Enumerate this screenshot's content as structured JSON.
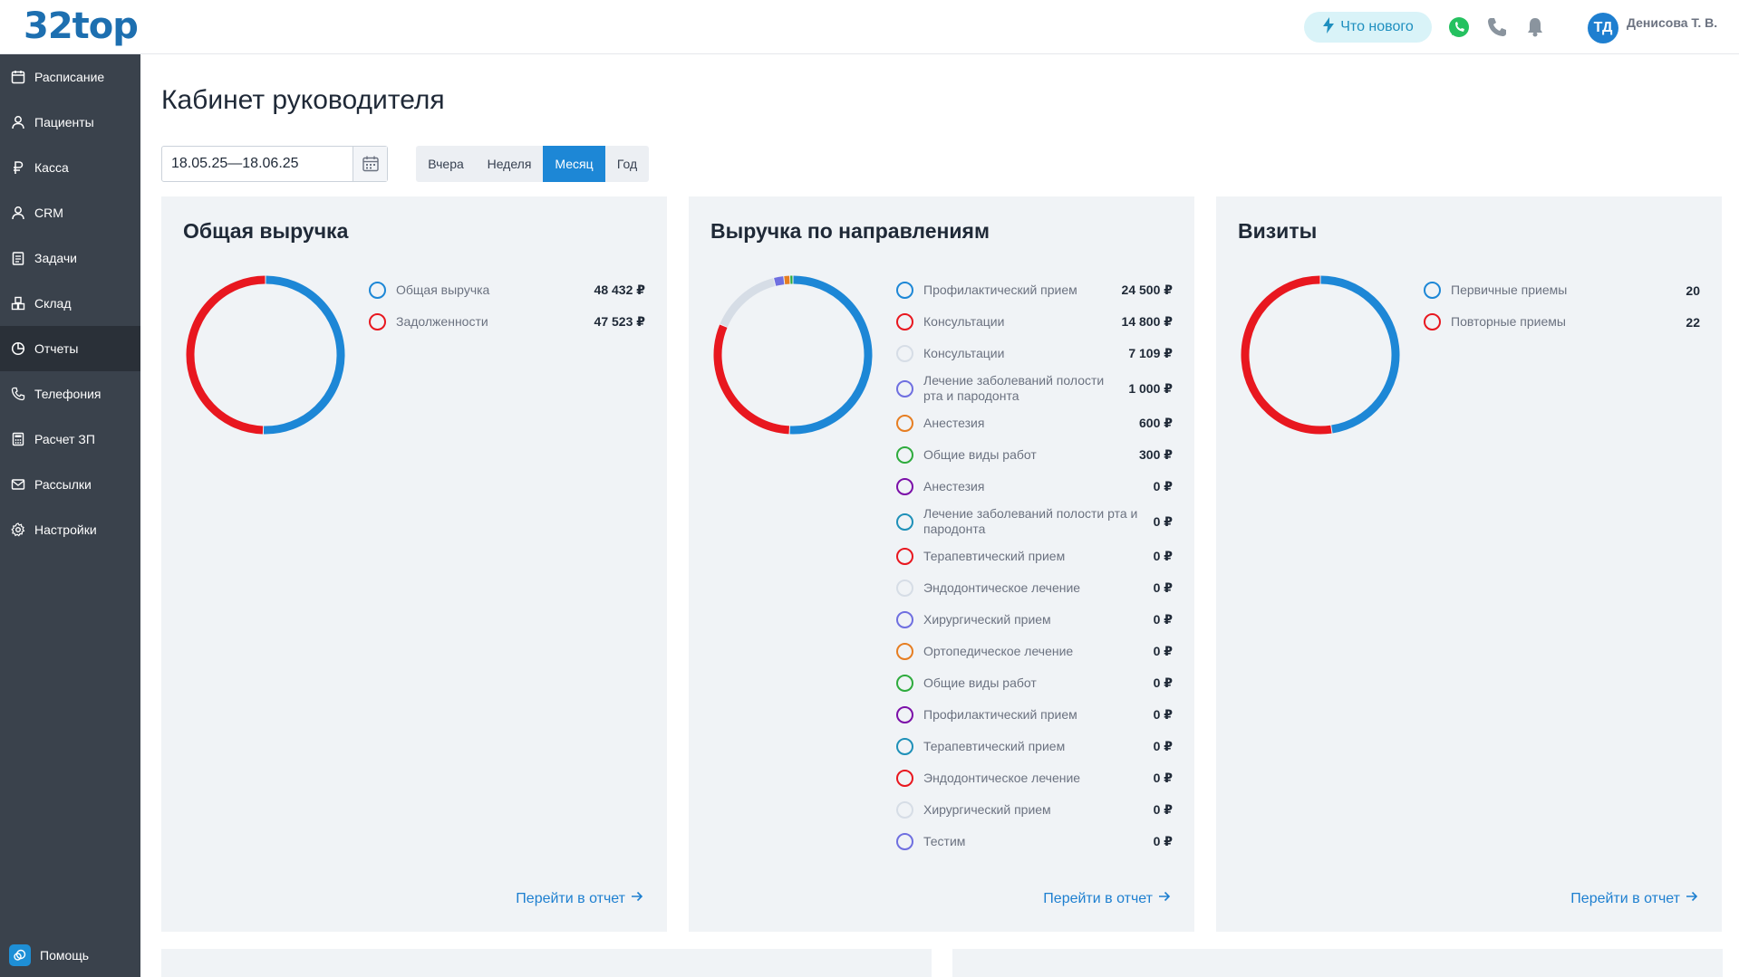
{
  "header": {
    "logo": "32top",
    "whats_new": "Что нового",
    "avatar_initials": "ТД",
    "user_name": "Денисова Т. В."
  },
  "sidebar": {
    "items": [
      {
        "label": "Расписание",
        "icon": "calendar-icon"
      },
      {
        "label": "Пациенты",
        "icon": "user-icon"
      },
      {
        "label": "Касса",
        "icon": "ruble-icon"
      },
      {
        "label": "CRM",
        "icon": "user-icon"
      },
      {
        "label": "Задачи",
        "icon": "clipboard-icon"
      },
      {
        "label": "Склад",
        "icon": "boxes-icon"
      },
      {
        "label": "Отчеты",
        "icon": "pie-chart-icon"
      },
      {
        "label": "Телефония",
        "icon": "phone-icon"
      },
      {
        "label": "Расчет ЗП",
        "icon": "calculator-icon"
      },
      {
        "label": "Рассылки",
        "icon": "mail-icon"
      },
      {
        "label": "Настройки",
        "icon": "gear-icon"
      }
    ],
    "active_index": 6,
    "help_label": "Помощь"
  },
  "main": {
    "title": "Кабинет руководителя",
    "date_range": "18.05.25—18.06.25",
    "periods": [
      "Вчера",
      "Неделя",
      "Месяц",
      "Год"
    ],
    "active_period": "Месяц",
    "report_link": "Перейти в отчет"
  },
  "chart_data": [
    {
      "type": "pie",
      "title": "Общая выручка",
      "series": [
        {
          "name": "Общая выручка",
          "value": 48432,
          "display": "48 432 ₽",
          "color": "#1d87d6"
        },
        {
          "name": "Задолженности",
          "value": 47523,
          "display": "47 523 ₽",
          "color": "#e8171f"
        }
      ]
    },
    {
      "type": "pie",
      "title": "Выручка по направлениям",
      "series": [
        {
          "name": "Профилактический прием",
          "value": 24500,
          "display": "24 500 ₽",
          "color": "#1d87d6"
        },
        {
          "name": "Консультации",
          "value": 14800,
          "display": "14 800 ₽",
          "color": "#e8171f"
        },
        {
          "name": "Консультации",
          "value": 7109,
          "display": "7 109 ₽",
          "color": "#d6dde6"
        },
        {
          "name": "Лечение заболеваний полости рта и пародонта",
          "value": 1000,
          "display": "1 000 ₽",
          "color": "#6f6fe0"
        },
        {
          "name": "Анестезия",
          "value": 600,
          "display": "600 ₽",
          "color": "#e67e22"
        },
        {
          "name": "Общие виды работ",
          "value": 300,
          "display": "300 ₽",
          "color": "#2eab3d"
        },
        {
          "name": "Анестезия",
          "value": 0,
          "display": "0 ₽",
          "color": "#7b0fa8"
        },
        {
          "name": "Лечение заболеваний полости рта и пародонта",
          "value": 0,
          "display": "0 ₽",
          "color": "#1e90b8"
        },
        {
          "name": "Терапевтический прием",
          "value": 0,
          "display": "0 ₽",
          "color": "#e8171f"
        },
        {
          "name": "Эндодонтическое лечение",
          "value": 0,
          "display": "0 ₽",
          "color": "#d6dde6"
        },
        {
          "name": "Хирургический прием",
          "value": 0,
          "display": "0 ₽",
          "color": "#6f6fe0"
        },
        {
          "name": "Ортопедическое лечение",
          "value": 0,
          "display": "0 ₽",
          "color": "#e67e22"
        },
        {
          "name": "Общие виды работ",
          "value": 0,
          "display": "0 ₽",
          "color": "#2eab3d"
        },
        {
          "name": "Профилактический прием",
          "value": 0,
          "display": "0 ₽",
          "color": "#7b0fa8"
        },
        {
          "name": "Терапевтический прием",
          "value": 0,
          "display": "0 ₽",
          "color": "#1e90b8"
        },
        {
          "name": "Эндодонтическое лечение",
          "value": 0,
          "display": "0 ₽",
          "color": "#e8171f"
        },
        {
          "name": "Хирургический прием",
          "value": 0,
          "display": "0 ₽",
          "color": "#d6dde6"
        },
        {
          "name": "Тестим",
          "value": 0,
          "display": "0 ₽",
          "color": "#6f6fe0"
        }
      ]
    },
    {
      "type": "pie",
      "title": "Визиты",
      "series": [
        {
          "name": "Первичные приемы",
          "value": 20,
          "display": "20",
          "color": "#1d87d6"
        },
        {
          "name": "Повторные приемы",
          "value": 22,
          "display": "22",
          "color": "#e8171f"
        }
      ]
    }
  ]
}
